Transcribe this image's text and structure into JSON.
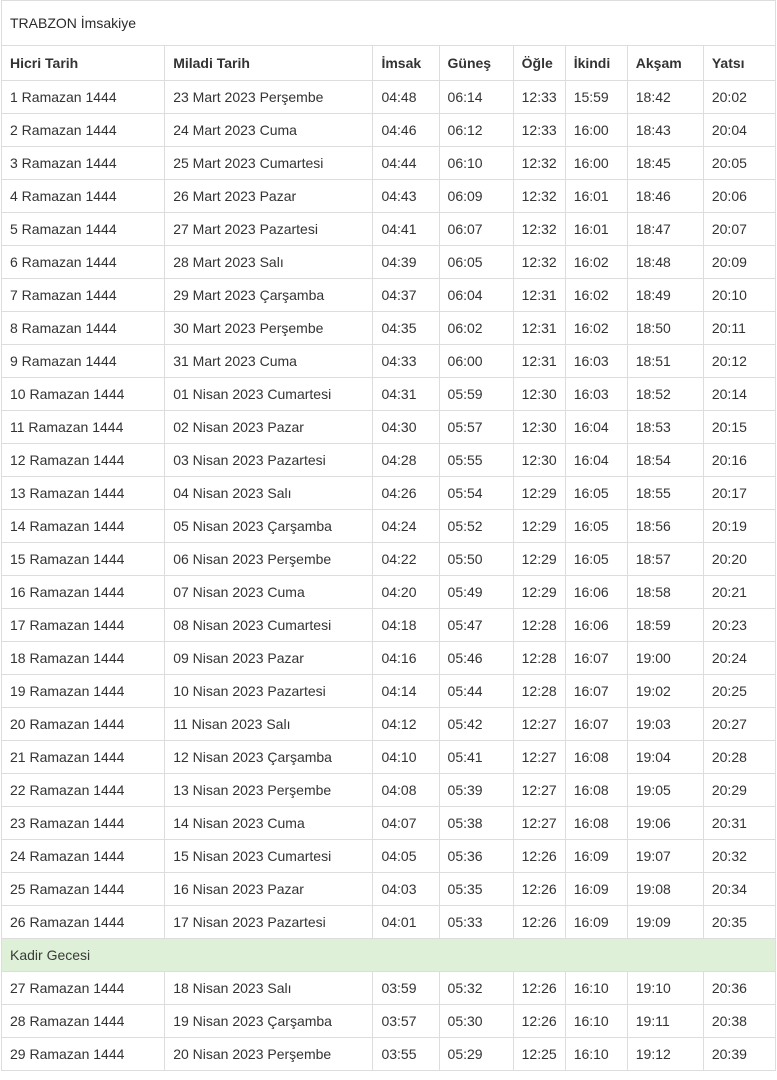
{
  "page": {
    "title": "TRABZON İmsakiye"
  },
  "table": {
    "columns": [
      "Hicri Tarih",
      "Miladi Tarih",
      "İmsak",
      "Güneş",
      "Öğle",
      "İkindi",
      "Akşam",
      "Yatsı"
    ],
    "rows": [
      {
        "hicri": "1 Ramazan 1444",
        "miladi": "23 Mart 2023 Perşembe",
        "imsak": "04:48",
        "gunes": "06:14",
        "ogle": "12:33",
        "ikindi": "15:59",
        "aksam": "18:42",
        "yatsi": "20:02"
      },
      {
        "hicri": "2 Ramazan 1444",
        "miladi": "24 Mart 2023 Cuma",
        "imsak": "04:46",
        "gunes": "06:12",
        "ogle": "12:33",
        "ikindi": "16:00",
        "aksam": "18:43",
        "yatsi": "20:04"
      },
      {
        "hicri": "3 Ramazan 1444",
        "miladi": "25 Mart 2023 Cumartesi",
        "imsak": "04:44",
        "gunes": "06:10",
        "ogle": "12:32",
        "ikindi": "16:00",
        "aksam": "18:45",
        "yatsi": "20:05"
      },
      {
        "hicri": "4 Ramazan 1444",
        "miladi": "26 Mart 2023 Pazar",
        "imsak": "04:43",
        "gunes": "06:09",
        "ogle": "12:32",
        "ikindi": "16:01",
        "aksam": "18:46",
        "yatsi": "20:06"
      },
      {
        "hicri": "5 Ramazan 1444",
        "miladi": "27 Mart 2023 Pazartesi",
        "imsak": "04:41",
        "gunes": "06:07",
        "ogle": "12:32",
        "ikindi": "16:01",
        "aksam": "18:47",
        "yatsi": "20:07"
      },
      {
        "hicri": "6 Ramazan 1444",
        "miladi": "28 Mart 2023 Salı",
        "imsak": "04:39",
        "gunes": "06:05",
        "ogle": "12:32",
        "ikindi": "16:02",
        "aksam": "18:48",
        "yatsi": "20:09"
      },
      {
        "hicri": "7 Ramazan 1444",
        "miladi": "29 Mart 2023 Çarşamba",
        "imsak": "04:37",
        "gunes": "06:04",
        "ogle": "12:31",
        "ikindi": "16:02",
        "aksam": "18:49",
        "yatsi": "20:10"
      },
      {
        "hicri": "8 Ramazan 1444",
        "miladi": "30 Mart 2023 Perşembe",
        "imsak": "04:35",
        "gunes": "06:02",
        "ogle": "12:31",
        "ikindi": "16:02",
        "aksam": "18:50",
        "yatsi": "20:11"
      },
      {
        "hicri": "9 Ramazan 1444",
        "miladi": "31 Mart 2023 Cuma",
        "imsak": "04:33",
        "gunes": "06:00",
        "ogle": "12:31",
        "ikindi": "16:03",
        "aksam": "18:51",
        "yatsi": "20:12"
      },
      {
        "hicri": "10 Ramazan 1444",
        "miladi": "01 Nisan 2023 Cumartesi",
        "imsak": "04:31",
        "gunes": "05:59",
        "ogle": "12:30",
        "ikindi": "16:03",
        "aksam": "18:52",
        "yatsi": "20:14"
      },
      {
        "hicri": "11 Ramazan 1444",
        "miladi": "02 Nisan 2023 Pazar",
        "imsak": "04:30",
        "gunes": "05:57",
        "ogle": "12:30",
        "ikindi": "16:04",
        "aksam": "18:53",
        "yatsi": "20:15"
      },
      {
        "hicri": "12 Ramazan 1444",
        "miladi": "03 Nisan 2023 Pazartesi",
        "imsak": "04:28",
        "gunes": "05:55",
        "ogle": "12:30",
        "ikindi": "16:04",
        "aksam": "18:54",
        "yatsi": "20:16"
      },
      {
        "hicri": "13 Ramazan 1444",
        "miladi": "04 Nisan 2023 Salı",
        "imsak": "04:26",
        "gunes": "05:54",
        "ogle": "12:29",
        "ikindi": "16:05",
        "aksam": "18:55",
        "yatsi": "20:17"
      },
      {
        "hicri": "14 Ramazan 1444",
        "miladi": "05 Nisan 2023 Çarşamba",
        "imsak": "04:24",
        "gunes": "05:52",
        "ogle": "12:29",
        "ikindi": "16:05",
        "aksam": "18:56",
        "yatsi": "20:19"
      },
      {
        "hicri": "15 Ramazan 1444",
        "miladi": "06 Nisan 2023 Perşembe",
        "imsak": "04:22",
        "gunes": "05:50",
        "ogle": "12:29",
        "ikindi": "16:05",
        "aksam": "18:57",
        "yatsi": "20:20"
      },
      {
        "hicri": "16 Ramazan 1444",
        "miladi": "07 Nisan 2023 Cuma",
        "imsak": "04:20",
        "gunes": "05:49",
        "ogle": "12:29",
        "ikindi": "16:06",
        "aksam": "18:58",
        "yatsi": "20:21"
      },
      {
        "hicri": "17 Ramazan 1444",
        "miladi": "08 Nisan 2023 Cumartesi",
        "imsak": "04:18",
        "gunes": "05:47",
        "ogle": "12:28",
        "ikindi": "16:06",
        "aksam": "18:59",
        "yatsi": "20:23"
      },
      {
        "hicri": "18 Ramazan 1444",
        "miladi": "09 Nisan 2023 Pazar",
        "imsak": "04:16",
        "gunes": "05:46",
        "ogle": "12:28",
        "ikindi": "16:07",
        "aksam": "19:00",
        "yatsi": "20:24"
      },
      {
        "hicri": "19 Ramazan 1444",
        "miladi": "10 Nisan 2023 Pazartesi",
        "imsak": "04:14",
        "gunes": "05:44",
        "ogle": "12:28",
        "ikindi": "16:07",
        "aksam": "19:02",
        "yatsi": "20:25"
      },
      {
        "hicri": "20 Ramazan 1444",
        "miladi": "11 Nisan 2023 Salı",
        "imsak": "04:12",
        "gunes": "05:42",
        "ogle": "12:27",
        "ikindi": "16:07",
        "aksam": "19:03",
        "yatsi": "20:27"
      },
      {
        "hicri": "21 Ramazan 1444",
        "miladi": "12 Nisan 2023 Çarşamba",
        "imsak": "04:10",
        "gunes": "05:41",
        "ogle": "12:27",
        "ikindi": "16:08",
        "aksam": "19:04",
        "yatsi": "20:28"
      },
      {
        "hicri": "22 Ramazan 1444",
        "miladi": "13 Nisan 2023 Perşembe",
        "imsak": "04:08",
        "gunes": "05:39",
        "ogle": "12:27",
        "ikindi": "16:08",
        "aksam": "19:05",
        "yatsi": "20:29"
      },
      {
        "hicri": "23 Ramazan 1444",
        "miladi": "14 Nisan 2023 Cuma",
        "imsak": "04:07",
        "gunes": "05:38",
        "ogle": "12:27",
        "ikindi": "16:08",
        "aksam": "19:06",
        "yatsi": "20:31"
      },
      {
        "hicri": "24 Ramazan 1444",
        "miladi": "15 Nisan 2023 Cumartesi",
        "imsak": "04:05",
        "gunes": "05:36",
        "ogle": "12:26",
        "ikindi": "16:09",
        "aksam": "19:07",
        "yatsi": "20:32"
      },
      {
        "hicri": "25 Ramazan 1444",
        "miladi": "16 Nisan 2023 Pazar",
        "imsak": "04:03",
        "gunes": "05:35",
        "ogle": "12:26",
        "ikindi": "16:09",
        "aksam": "19:08",
        "yatsi": "20:34"
      },
      {
        "hicri": "26 Ramazan 1444",
        "miladi": "17 Nisan 2023 Pazartesi",
        "imsak": "04:01",
        "gunes": "05:33",
        "ogle": "12:26",
        "ikindi": "16:09",
        "aksam": "19:09",
        "yatsi": "20:35"
      },
      {
        "section": "Kadir Gecesi"
      },
      {
        "hicri": "27 Ramazan 1444",
        "miladi": "18 Nisan 2023 Salı",
        "imsak": "03:59",
        "gunes": "05:32",
        "ogle": "12:26",
        "ikindi": "16:10",
        "aksam": "19:10",
        "yatsi": "20:36"
      },
      {
        "hicri": "28 Ramazan 1444",
        "miladi": "19 Nisan 2023 Çarşamba",
        "imsak": "03:57",
        "gunes": "05:30",
        "ogle": "12:26",
        "ikindi": "16:10",
        "aksam": "19:11",
        "yatsi": "20:38"
      },
      {
        "hicri": "29 Ramazan 1444",
        "miladi": "20 Nisan 2023 Perşembe",
        "imsak": "03:55",
        "gunes": "05:29",
        "ogle": "12:25",
        "ikindi": "16:10",
        "aksam": "19:12",
        "yatsi": "20:39"
      }
    ]
  },
  "colors": {
    "border": "#dddddd",
    "text": "#333333",
    "section_background": "#dff0d8"
  }
}
